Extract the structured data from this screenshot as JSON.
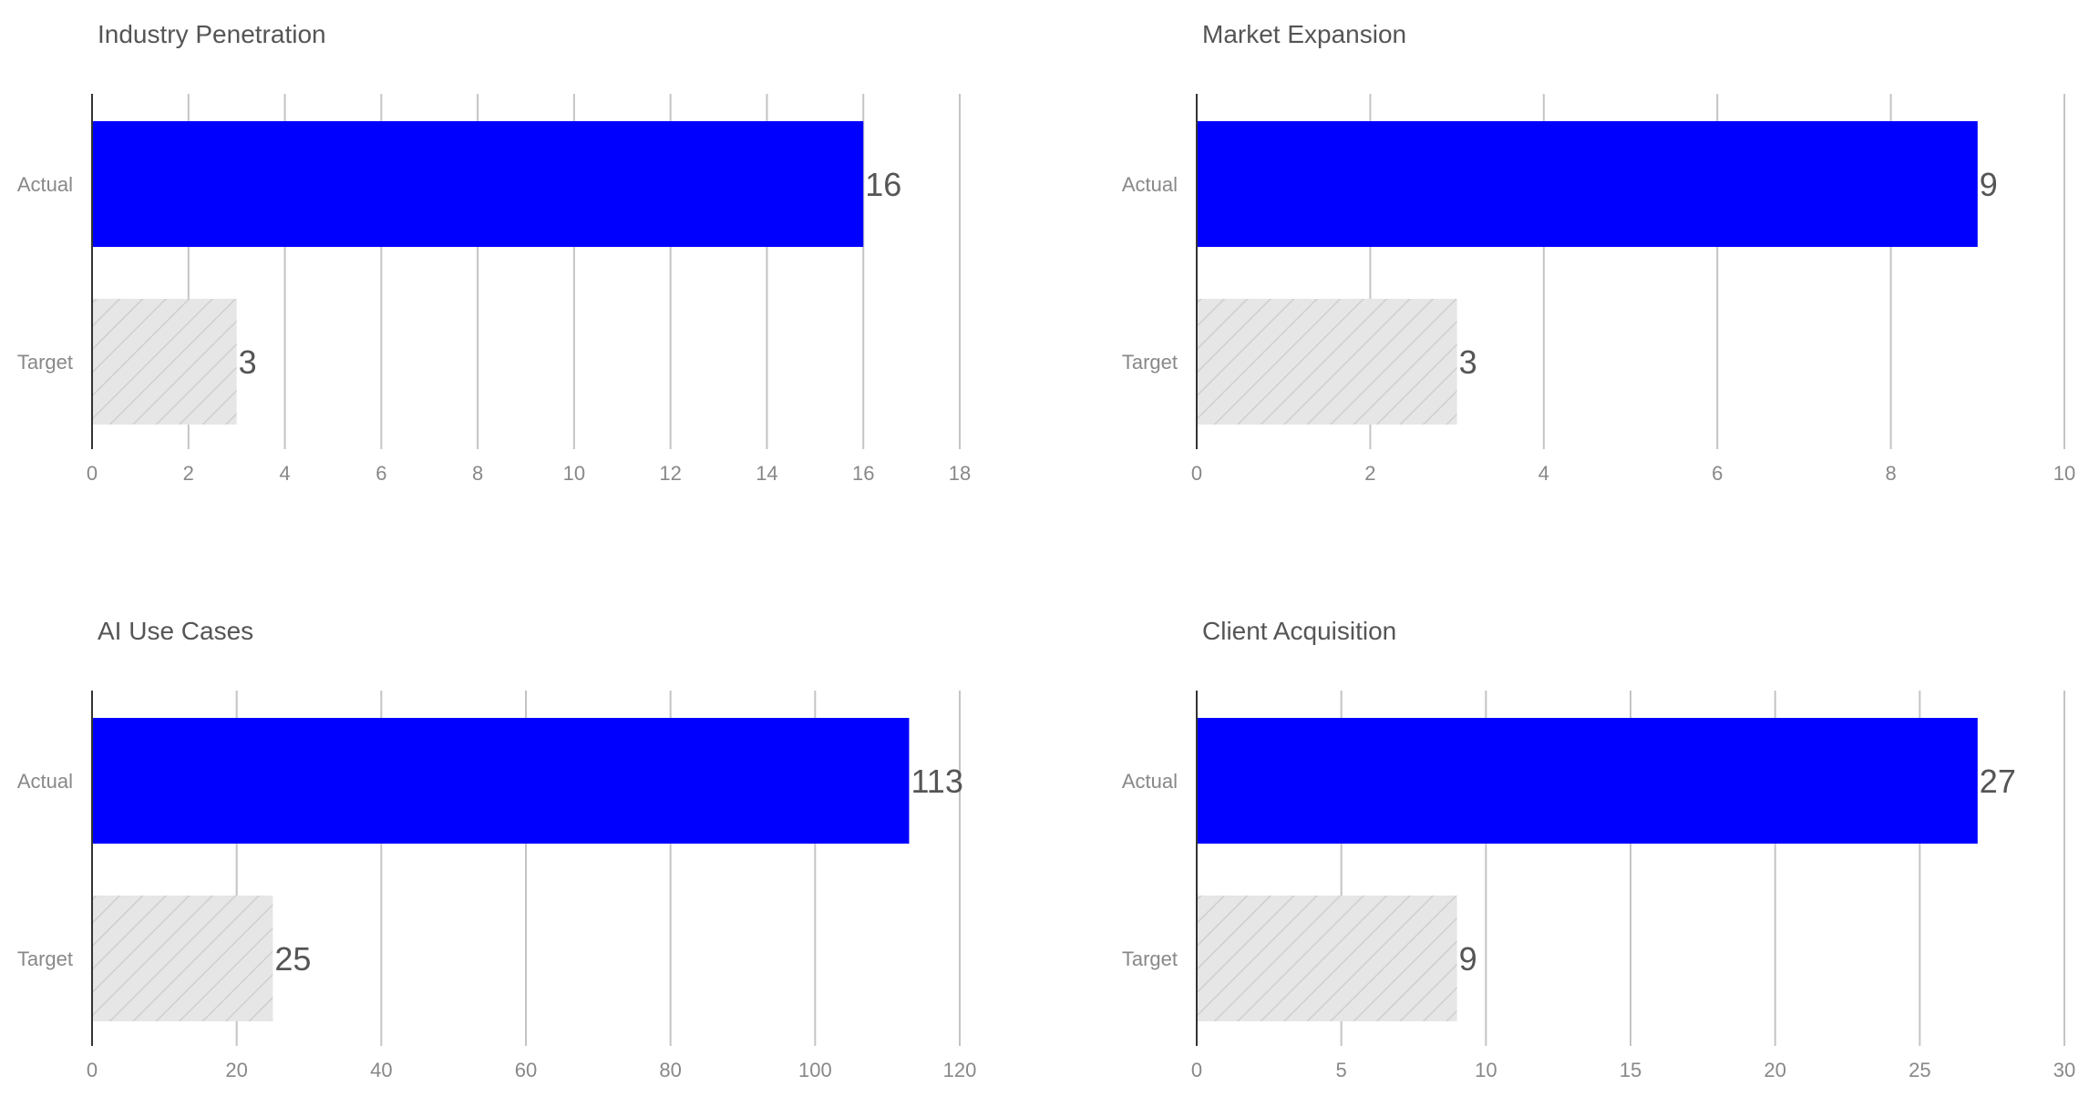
{
  "colors": {
    "actual": "#0000ff",
    "target_fill": "#e6e6e6",
    "target_hatch": "#cfcfcf",
    "grid": "#c4c4c4",
    "axis": "#333333",
    "text": "#555555",
    "muted_text": "#888888"
  },
  "chart_data": [
    {
      "type": "bar",
      "orientation": "horizontal",
      "title": "Industry Penetration",
      "categories": [
        "Actual",
        "Target"
      ],
      "values": [
        16,
        3
      ],
      "xlim": [
        0,
        18
      ],
      "xticks": [
        0,
        2,
        4,
        6,
        8,
        10,
        12,
        14,
        16,
        18
      ],
      "grid": true,
      "legend": "none"
    },
    {
      "type": "bar",
      "orientation": "horizontal",
      "title": "Market Expansion",
      "categories": [
        "Actual",
        "Target"
      ],
      "values": [
        9,
        3
      ],
      "xlim": [
        0,
        10
      ],
      "xticks": [
        0,
        2,
        4,
        6,
        8,
        10
      ],
      "grid": true,
      "legend": "none"
    },
    {
      "type": "bar",
      "orientation": "horizontal",
      "title": "AI Use Cases",
      "categories": [
        "Actual",
        "Target"
      ],
      "values": [
        113,
        25
      ],
      "xlim": [
        0,
        120
      ],
      "xticks": [
        0,
        20,
        40,
        60,
        80,
        100,
        120
      ],
      "grid": true,
      "legend": "none"
    },
    {
      "type": "bar",
      "orientation": "horizontal",
      "title": "Client Acquisition",
      "categories": [
        "Actual",
        "Target"
      ],
      "values": [
        27,
        9
      ],
      "xlim": [
        0,
        30
      ],
      "xticks": [
        0,
        5,
        10,
        15,
        20,
        25,
        30
      ],
      "grid": true,
      "legend": "none"
    }
  ]
}
